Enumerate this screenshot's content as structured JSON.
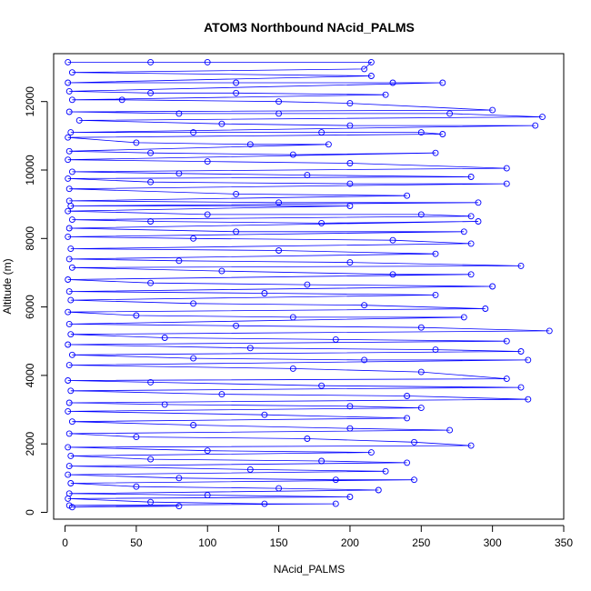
{
  "chart_data": {
    "type": "line",
    "title": "ATOM3 Northbound NAcid_PALMS",
    "xlabel": "NAcid_PALMS",
    "ylabel": "Altitude (m)",
    "xlim": [
      -8,
      350
    ],
    "ylim": [
      -200,
      13400
    ],
    "xticks": [
      0,
      50,
      100,
      150,
      200,
      250,
      300,
      350
    ],
    "yticks": [
      0,
      2000,
      4000,
      6000,
      8000,
      10000,
      12000
    ],
    "grid": false,
    "legend": "none",
    "series": [
      {
        "color": "#0000ff",
        "points": [
          [
            2,
            13150
          ],
          [
            60,
            13150
          ],
          [
            100,
            13150
          ],
          [
            215,
            13150
          ],
          [
            210,
            12950
          ],
          [
            5,
            12850
          ],
          [
            215,
            12750
          ],
          [
            2,
            12550
          ],
          [
            120,
            12550
          ],
          [
            230,
            12550
          ],
          [
            265,
            12550
          ],
          [
            3,
            12300
          ],
          [
            60,
            12250
          ],
          [
            120,
            12250
          ],
          [
            225,
            12200
          ],
          [
            5,
            12050
          ],
          [
            40,
            12050
          ],
          [
            150,
            12000
          ],
          [
            200,
            11950
          ],
          [
            300,
            11750
          ],
          [
            3,
            11700
          ],
          [
            80,
            11650
          ],
          [
            150,
            11650
          ],
          [
            270,
            11650
          ],
          [
            335,
            11550
          ],
          [
            10,
            11450
          ],
          [
            110,
            11350
          ],
          [
            200,
            11300
          ],
          [
            330,
            11300
          ],
          [
            4,
            11100
          ],
          [
            90,
            11100
          ],
          [
            180,
            11100
          ],
          [
            250,
            11100
          ],
          [
            265,
            11050
          ],
          [
            2,
            10950
          ],
          [
            50,
            10800
          ],
          [
            130,
            10750
          ],
          [
            185,
            10750
          ],
          [
            3,
            10550
          ],
          [
            60,
            10500
          ],
          [
            160,
            10450
          ],
          [
            260,
            10500
          ],
          [
            2,
            10300
          ],
          [
            100,
            10250
          ],
          [
            200,
            10200
          ],
          [
            310,
            10050
          ],
          [
            5,
            9950
          ],
          [
            80,
            9900
          ],
          [
            170,
            9850
          ],
          [
            285,
            9800
          ],
          [
            2,
            9750
          ],
          [
            60,
            9650
          ],
          [
            200,
            9600
          ],
          [
            310,
            9600
          ],
          [
            3,
            9450
          ],
          [
            120,
            9300
          ],
          [
            240,
            9250
          ],
          [
            3,
            9100
          ],
          [
            150,
            9050
          ],
          [
            290,
            9050
          ],
          [
            4,
            8950
          ],
          [
            200,
            8950
          ],
          [
            2,
            8800
          ],
          [
            100,
            8700
          ],
          [
            250,
            8700
          ],
          [
            285,
            8650
          ],
          [
            5,
            8550
          ],
          [
            60,
            8500
          ],
          [
            180,
            8450
          ],
          [
            290,
            8500
          ],
          [
            3,
            8300
          ],
          [
            120,
            8200
          ],
          [
            280,
            8200
          ],
          [
            2,
            8050
          ],
          [
            90,
            8000
          ],
          [
            230,
            7950
          ],
          [
            285,
            7850
          ],
          [
            4,
            7700
          ],
          [
            150,
            7650
          ],
          [
            260,
            7550
          ],
          [
            3,
            7400
          ],
          [
            80,
            7350
          ],
          [
            200,
            7300
          ],
          [
            320,
            7200
          ],
          [
            5,
            7150
          ],
          [
            110,
            7050
          ],
          [
            230,
            6950
          ],
          [
            285,
            6950
          ],
          [
            2,
            6800
          ],
          [
            60,
            6700
          ],
          [
            170,
            6650
          ],
          [
            300,
            6600
          ],
          [
            3,
            6450
          ],
          [
            140,
            6400
          ],
          [
            260,
            6350
          ],
          [
            4,
            6200
          ],
          [
            90,
            6100
          ],
          [
            210,
            6050
          ],
          [
            295,
            5950
          ],
          [
            2,
            5850
          ],
          [
            50,
            5750
          ],
          [
            160,
            5700
          ],
          [
            280,
            5700
          ],
          [
            3,
            5500
          ],
          [
            120,
            5450
          ],
          [
            250,
            5400
          ],
          [
            340,
            5300
          ],
          [
            4,
            5200
          ],
          [
            70,
            5100
          ],
          [
            190,
            5050
          ],
          [
            310,
            5000
          ],
          [
            2,
            4900
          ],
          [
            130,
            4800
          ],
          [
            260,
            4750
          ],
          [
            320,
            4700
          ],
          [
            5,
            4600
          ],
          [
            90,
            4500
          ],
          [
            210,
            4450
          ],
          [
            325,
            4450
          ],
          [
            3,
            4300
          ],
          [
            160,
            4200
          ],
          [
            250,
            4100
          ],
          [
            310,
            3900
          ],
          [
            2,
            3850
          ],
          [
            60,
            3800
          ],
          [
            180,
            3700
          ],
          [
            320,
            3650
          ],
          [
            4,
            3550
          ],
          [
            110,
            3450
          ],
          [
            240,
            3400
          ],
          [
            325,
            3300
          ],
          [
            3,
            3200
          ],
          [
            70,
            3150
          ],
          [
            200,
            3100
          ],
          [
            250,
            3050
          ],
          [
            2,
            2950
          ],
          [
            140,
            2850
          ],
          [
            240,
            2750
          ],
          [
            5,
            2650
          ],
          [
            90,
            2550
          ],
          [
            200,
            2450
          ],
          [
            270,
            2400
          ],
          [
            3,
            2300
          ],
          [
            50,
            2200
          ],
          [
            170,
            2150
          ],
          [
            245,
            2050
          ],
          [
            285,
            1950
          ],
          [
            2,
            1900
          ],
          [
            100,
            1800
          ],
          [
            215,
            1750
          ],
          [
            4,
            1650
          ],
          [
            60,
            1550
          ],
          [
            180,
            1500
          ],
          [
            240,
            1450
          ],
          [
            3,
            1350
          ],
          [
            130,
            1250
          ],
          [
            225,
            1200
          ],
          [
            2,
            1100
          ],
          [
            80,
            1000
          ],
          [
            190,
            950
          ],
          [
            245,
            950
          ],
          [
            4,
            850
          ],
          [
            50,
            750
          ],
          [
            150,
            700
          ],
          [
            220,
            650
          ],
          [
            3,
            550
          ],
          [
            100,
            500
          ],
          [
            200,
            450
          ],
          [
            2,
            400
          ],
          [
            60,
            300
          ],
          [
            140,
            250
          ],
          [
            190,
            250
          ],
          [
            3,
            200
          ],
          [
            80,
            180
          ],
          [
            5,
            150
          ]
        ]
      }
    ]
  }
}
